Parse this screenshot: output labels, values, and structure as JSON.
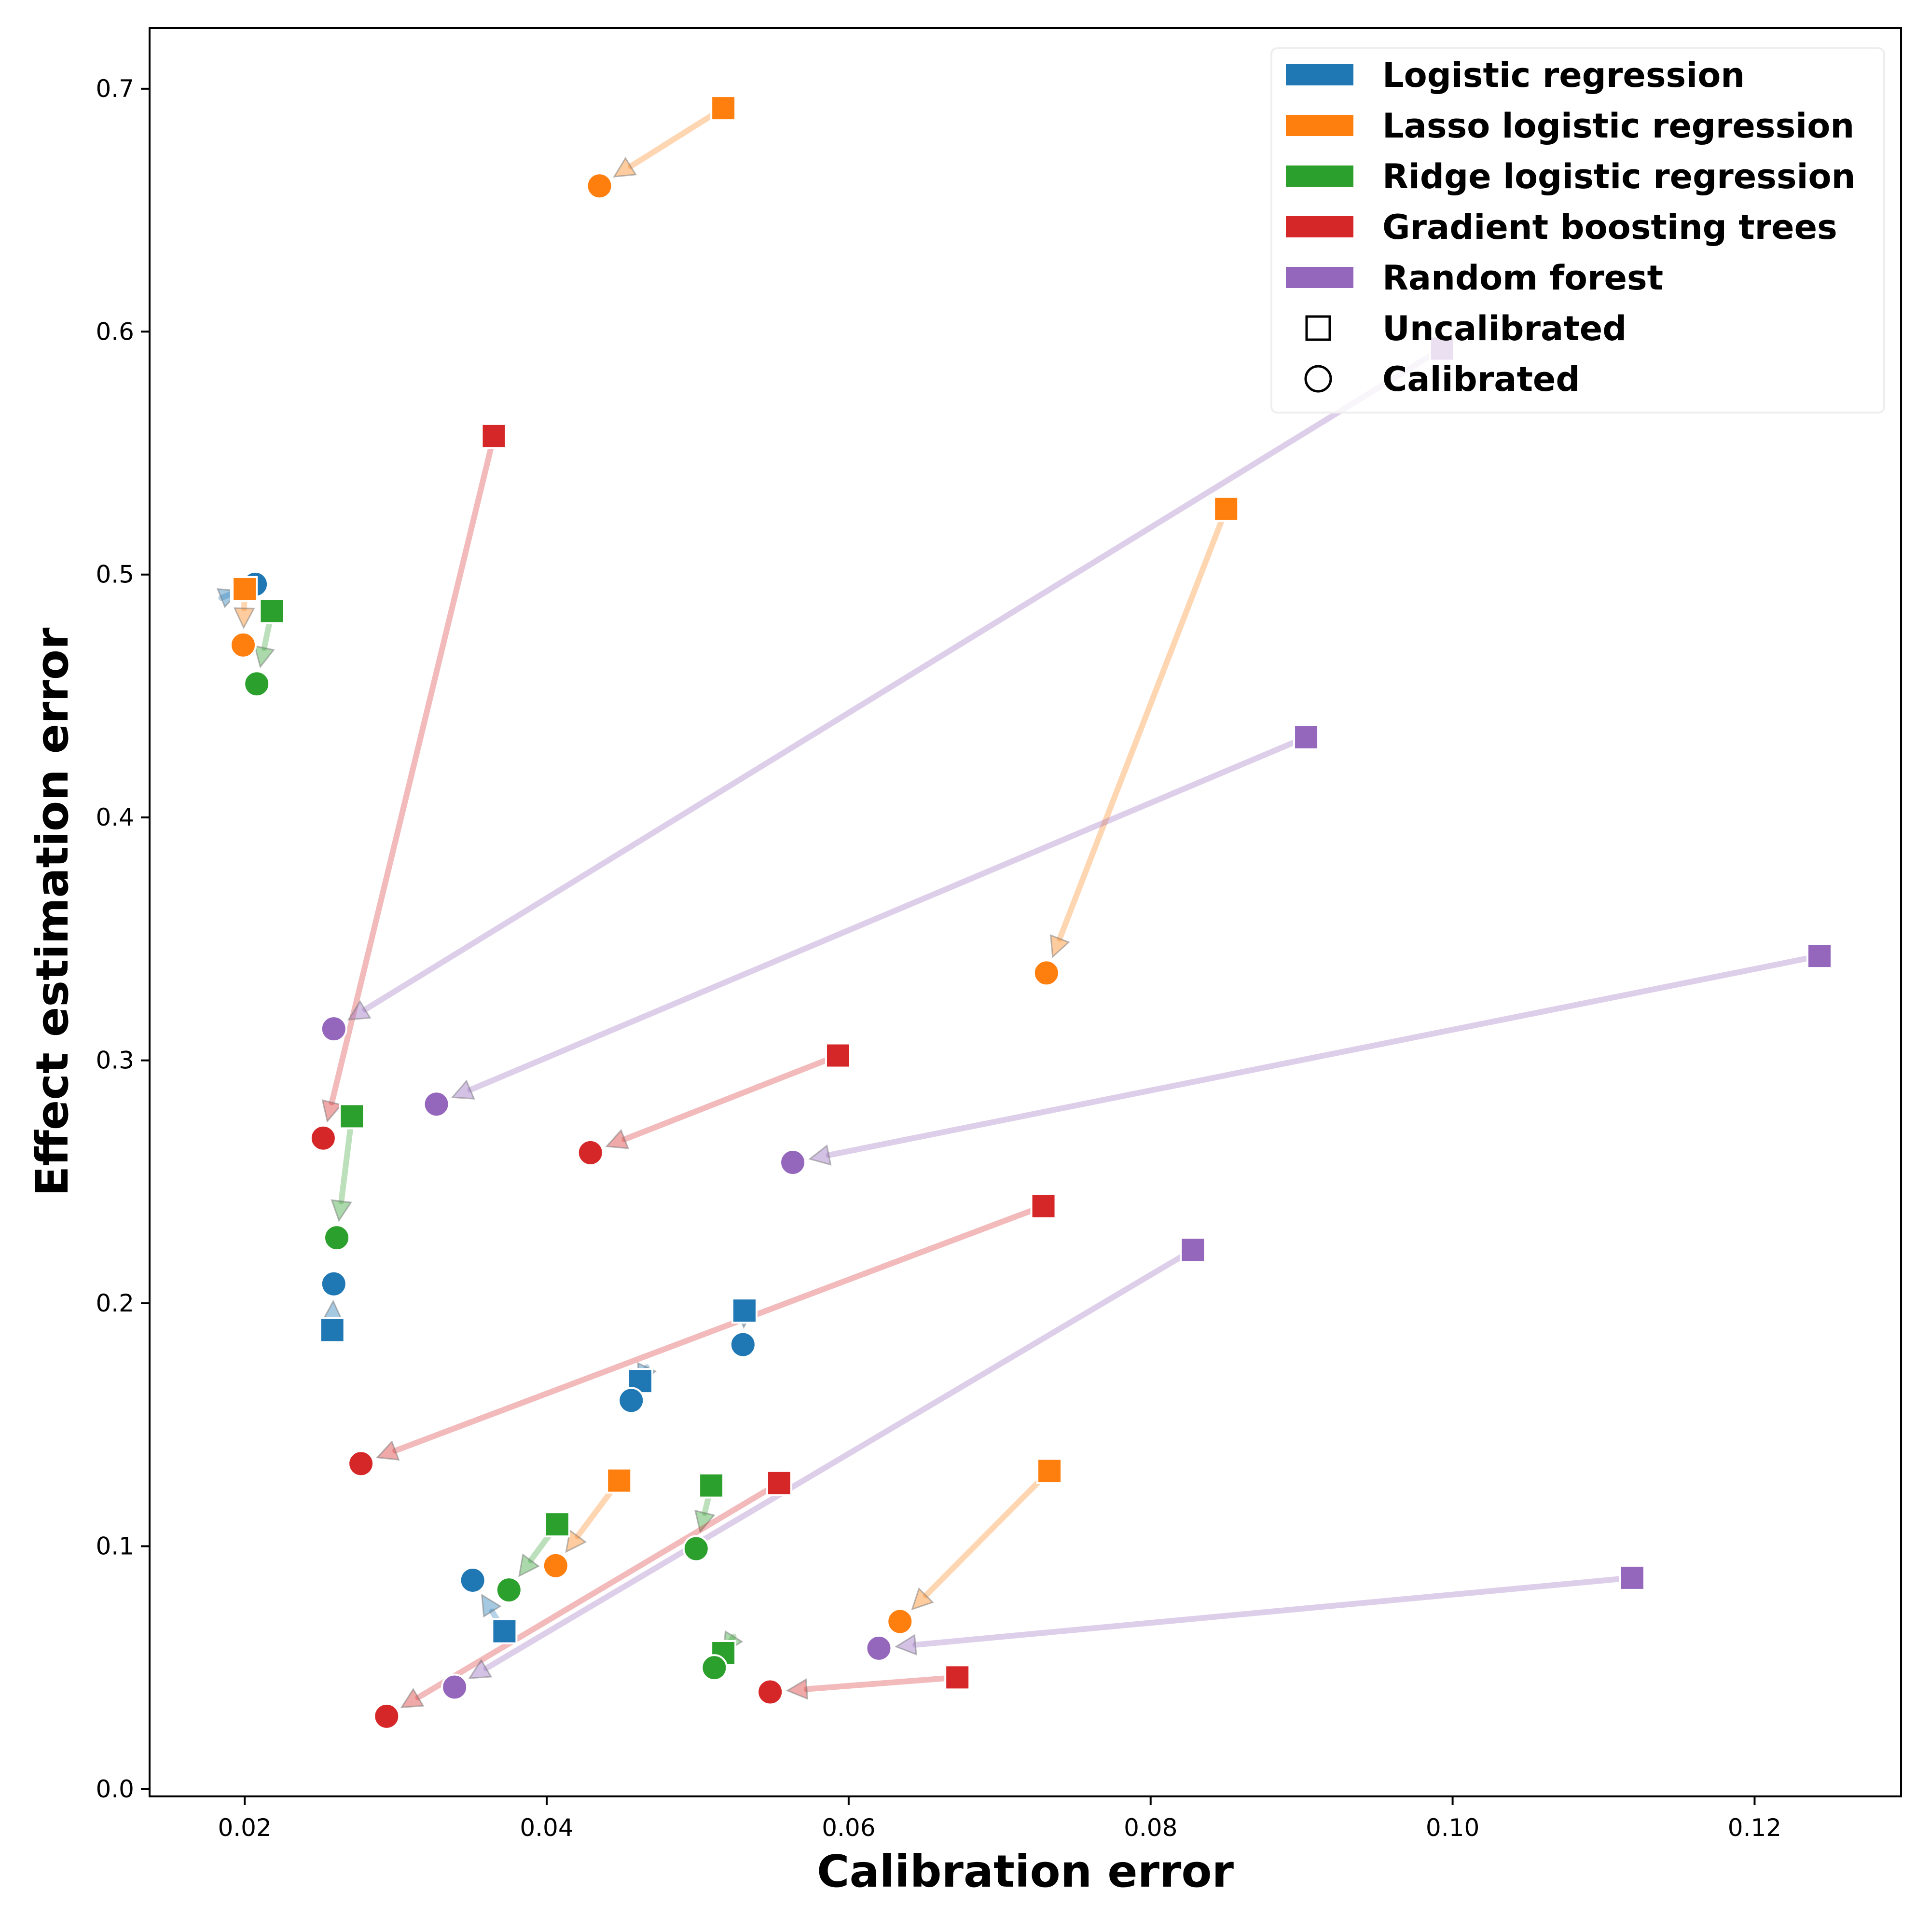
{
  "chart_data": {
    "type": "scatter",
    "title": "",
    "xlabel": "Calibration error",
    "ylabel": "Effect estimation error",
    "xlim": [
      0.0137,
      0.1297
    ],
    "ylim": [
      -0.003,
      0.725
    ],
    "xticks": [
      0.02,
      0.04,
      0.06,
      0.08,
      0.1,
      0.12
    ],
    "xtick_labels": [
      "0.02",
      "0.04",
      "0.06",
      "0.08",
      "0.10",
      "0.12"
    ],
    "yticks": [
      0.0,
      0.1,
      0.2,
      0.3,
      0.4,
      0.5,
      0.6,
      0.7
    ],
    "ytick_labels": [
      "0.0",
      "0.1",
      "0.2",
      "0.3",
      "0.4",
      "0.5",
      "0.6",
      "0.7"
    ],
    "grid": false,
    "legend_position": "top-right",
    "markers": {
      "uncalibrated": "Uncalibrated",
      "calibrated": "Calibrated"
    },
    "series": [
      {
        "name": "Logistic regression",
        "color": "#1f77b4",
        "pairs": [
          {
            "uncalibrated": [
              0.0199,
              0.494
            ],
            "calibrated": [
              0.0207,
              0.496
            ]
          },
          {
            "uncalibrated": [
              0.0258,
              0.189
            ],
            "calibrated": [
              0.0259,
              0.208
            ]
          },
          {
            "uncalibrated": [
              0.0531,
              0.197
            ],
            "calibrated": [
              0.053,
              0.183
            ]
          },
          {
            "uncalibrated": [
              0.0462,
              0.168
            ],
            "calibrated": [
              0.0456,
              0.16
            ]
          },
          {
            "uncalibrated": [
              0.0372,
              0.065
            ],
            "calibrated": [
              0.0351,
              0.086
            ]
          }
        ]
      },
      {
        "name": "Lasso logistic regression",
        "color": "#ff7f0e",
        "pairs": [
          {
            "uncalibrated": [
              0.0517,
              0.692
            ],
            "calibrated": [
              0.0435,
              0.66
            ]
          },
          {
            "uncalibrated": [
              0.02,
              0.494
            ],
            "calibrated": [
              0.0199,
              0.471
            ]
          },
          {
            "uncalibrated": [
              0.085,
              0.527
            ],
            "calibrated": [
              0.0731,
              0.336
            ]
          },
          {
            "uncalibrated": [
              0.0448,
              0.127
            ],
            "calibrated": [
              0.0406,
              0.092
            ]
          },
          {
            "uncalibrated": [
              0.0733,
              0.131
            ],
            "calibrated": [
              0.0634,
              0.069
            ]
          }
        ]
      },
      {
        "name": "Ridge logistic regression",
        "color": "#2ca02c",
        "pairs": [
          {
            "uncalibrated": [
              0.0218,
              0.485
            ],
            "calibrated": [
              0.0208,
              0.455
            ]
          },
          {
            "uncalibrated": [
              0.0271,
              0.277
            ],
            "calibrated": [
              0.0261,
              0.227
            ]
          },
          {
            "uncalibrated": [
              0.0407,
              0.109
            ],
            "calibrated": [
              0.0375,
              0.082
            ]
          },
          {
            "uncalibrated": [
              0.0509,
              0.125
            ],
            "calibrated": [
              0.0499,
              0.099
            ]
          },
          {
            "uncalibrated": [
              0.0517,
              0.056
            ],
            "calibrated": [
              0.0511,
              0.05
            ]
          }
        ]
      },
      {
        "name": "Gradient boosting trees",
        "color": "#d62728",
        "pairs": [
          {
            "uncalibrated": [
              0.0365,
              0.557
            ],
            "calibrated": [
              0.0252,
              0.268
            ]
          },
          {
            "uncalibrated": [
              0.0593,
              0.302
            ],
            "calibrated": [
              0.0429,
              0.262
            ]
          },
          {
            "uncalibrated": [
              0.0729,
              0.24
            ],
            "calibrated": [
              0.0277,
              0.134
            ]
          },
          {
            "uncalibrated": [
              0.0554,
              0.126
            ],
            "calibrated": [
              0.0294,
              0.03
            ]
          },
          {
            "uncalibrated": [
              0.0672,
              0.046
            ],
            "calibrated": [
              0.0548,
              0.04
            ]
          }
        ]
      },
      {
        "name": "Random forest",
        "color": "#9467bd",
        "pairs": [
          {
            "uncalibrated": [
              0.0993,
              0.593
            ],
            "calibrated": [
              0.0259,
              0.313
            ]
          },
          {
            "uncalibrated": [
              0.0903,
              0.433
            ],
            "calibrated": [
              0.0327,
              0.282
            ]
          },
          {
            "uncalibrated": [
              0.1243,
              0.343
            ],
            "calibrated": [
              0.0563,
              0.258
            ]
          },
          {
            "uncalibrated": [
              0.0828,
              0.222
            ],
            "calibrated": [
              0.0339,
              0.042
            ]
          },
          {
            "uncalibrated": [
              0.1119,
              0.087
            ],
            "calibrated": [
              0.062,
              0.058
            ]
          }
        ]
      }
    ]
  }
}
